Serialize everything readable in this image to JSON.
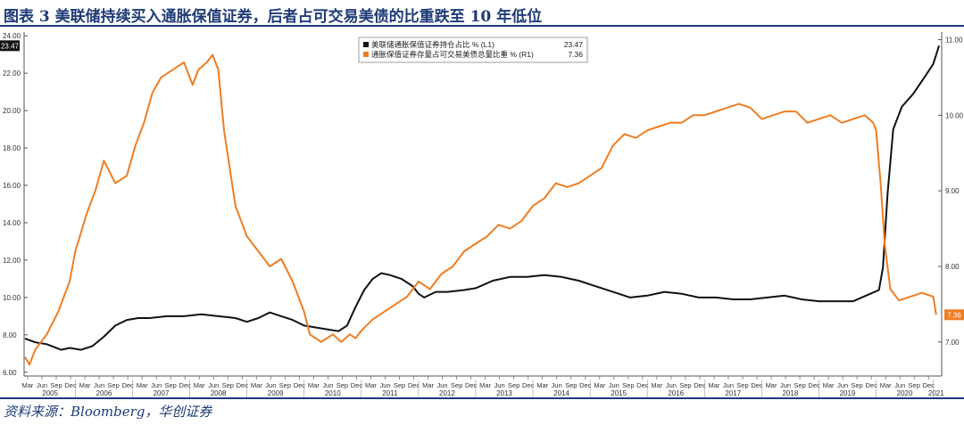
{
  "figure": {
    "title": "图表 3  美联储持续买入通胀保值证券，后者占可交易美债的比重跌至 10 年低位",
    "source": "资料来源：Bloomberg，华创证券"
  },
  "chart_data": {
    "type": "line",
    "x_range": [
      2005.12,
      2021.1
    ],
    "y_left": {
      "min": 5.8,
      "max": 24.2,
      "ticks": [
        "6.00",
        "8.00",
        "10.00",
        "12.00",
        "14.00",
        "16.00",
        "18.00",
        "20.00",
        "22.00",
        "24.00"
      ],
      "tick_values": [
        6,
        8,
        10,
        12,
        14,
        16,
        18,
        20,
        22,
        24
      ]
    },
    "y_right": {
      "min": 6.55,
      "max": 11.1,
      "ticks": [
        "7.00",
        "8.00",
        "9.00",
        "10.00",
        "11.00"
      ],
      "tick_values": [
        7,
        8,
        9,
        10,
        11
      ]
    },
    "x_month_labels": [
      "Mar",
      "Jun",
      "Sep",
      "Dec"
    ],
    "x_years": [
      "2005",
      "2006",
      "2007",
      "2008",
      "2009",
      "2010",
      "2011",
      "2012",
      "2013",
      "2014",
      "2015",
      "2016",
      "2017",
      "2018",
      "2019",
      "2020",
      "2021"
    ],
    "grid": false,
    "legend_position": "top",
    "series": [
      {
        "name": "美联储通胀保值证券持仓占比 % (L1)",
        "axis": "left",
        "color": "#111111",
        "last_value": "23.47",
        "points": [
          [
            2005.12,
            7.8
          ],
          [
            2005.3,
            7.6
          ],
          [
            2005.5,
            7.5
          ],
          [
            2005.75,
            7.2
          ],
          [
            2005.9,
            7.3
          ],
          [
            2006.1,
            7.2
          ],
          [
            2006.3,
            7.4
          ],
          [
            2006.5,
            7.9
          ],
          [
            2006.7,
            8.5
          ],
          [
            2006.9,
            8.8
          ],
          [
            2007.1,
            8.9
          ],
          [
            2007.3,
            8.9
          ],
          [
            2007.6,
            9.0
          ],
          [
            2007.9,
            9.0
          ],
          [
            2008.2,
            9.1
          ],
          [
            2008.5,
            9.0
          ],
          [
            2008.8,
            8.9
          ],
          [
            2009.0,
            8.7
          ],
          [
            2009.2,
            8.9
          ],
          [
            2009.4,
            9.2
          ],
          [
            2009.6,
            9.0
          ],
          [
            2009.8,
            8.8
          ],
          [
            2010.0,
            8.5
          ],
          [
            2010.2,
            8.4
          ],
          [
            2010.4,
            8.3
          ],
          [
            2010.6,
            8.2
          ],
          [
            2010.75,
            8.5
          ],
          [
            2010.9,
            9.5
          ],
          [
            2011.05,
            10.4
          ],
          [
            2011.2,
            11.0
          ],
          [
            2011.35,
            11.3
          ],
          [
            2011.5,
            11.2
          ],
          [
            2011.7,
            11.0
          ],
          [
            2011.9,
            10.6
          ],
          [
            2012.0,
            10.2
          ],
          [
            2012.1,
            10.0
          ],
          [
            2012.3,
            10.3
          ],
          [
            2012.5,
            10.3
          ],
          [
            2012.8,
            10.4
          ],
          [
            2013.0,
            10.5
          ],
          [
            2013.3,
            10.9
          ],
          [
            2013.6,
            11.1
          ],
          [
            2013.9,
            11.1
          ],
          [
            2014.2,
            11.2
          ],
          [
            2014.5,
            11.1
          ],
          [
            2014.8,
            10.9
          ],
          [
            2015.1,
            10.6
          ],
          [
            2015.4,
            10.3
          ],
          [
            2015.7,
            10.0
          ],
          [
            2016.0,
            10.1
          ],
          [
            2016.3,
            10.3
          ],
          [
            2016.6,
            10.2
          ],
          [
            2016.9,
            10.0
          ],
          [
            2017.2,
            10.0
          ],
          [
            2017.5,
            9.9
          ],
          [
            2017.8,
            9.9
          ],
          [
            2018.1,
            10.0
          ],
          [
            2018.4,
            10.1
          ],
          [
            2018.7,
            9.9
          ],
          [
            2019.0,
            9.8
          ],
          [
            2019.3,
            9.8
          ],
          [
            2019.6,
            9.8
          ],
          [
            2019.9,
            10.2
          ],
          [
            2020.05,
            10.4
          ],
          [
            2020.12,
            11.6
          ],
          [
            2020.2,
            15.5
          ],
          [
            2020.3,
            19.0
          ],
          [
            2020.45,
            20.2
          ],
          [
            2020.65,
            20.9
          ],
          [
            2020.85,
            21.8
          ],
          [
            2021.0,
            22.5
          ],
          [
            2021.1,
            23.47
          ]
        ]
      },
      {
        "name": "通胀保值证券存量占可交易美债总量比重 % (R1)",
        "axis": "right",
        "color": "#ef7d22",
        "last_value": "7.36",
        "points": [
          [
            2005.12,
            6.8
          ],
          [
            2005.2,
            6.7
          ],
          [
            2005.3,
            6.9
          ],
          [
            2005.5,
            7.1
          ],
          [
            2005.7,
            7.4
          ],
          [
            2005.9,
            7.8
          ],
          [
            2006.0,
            8.2
          ],
          [
            2006.2,
            8.7
          ],
          [
            2006.35,
            9.0
          ],
          [
            2006.5,
            9.4
          ],
          [
            2006.7,
            9.1
          ],
          [
            2006.9,
            9.2
          ],
          [
            2007.05,
            9.6
          ],
          [
            2007.2,
            9.9
          ],
          [
            2007.35,
            10.3
          ],
          [
            2007.5,
            10.5
          ],
          [
            2007.7,
            10.6
          ],
          [
            2007.9,
            10.7
          ],
          [
            2008.05,
            10.4
          ],
          [
            2008.15,
            10.6
          ],
          [
            2008.3,
            10.7
          ],
          [
            2008.4,
            10.8
          ],
          [
            2008.5,
            10.6
          ],
          [
            2008.6,
            9.8
          ],
          [
            2008.8,
            8.8
          ],
          [
            2009.0,
            8.4
          ],
          [
            2009.2,
            8.2
          ],
          [
            2009.4,
            8.0
          ],
          [
            2009.6,
            8.1
          ],
          [
            2009.8,
            7.8
          ],
          [
            2010.0,
            7.4
          ],
          [
            2010.1,
            7.1
          ],
          [
            2010.3,
            7.0
          ],
          [
            2010.5,
            7.1
          ],
          [
            2010.65,
            7.0
          ],
          [
            2010.8,
            7.1
          ],
          [
            2010.9,
            7.05
          ],
          [
            2011.0,
            7.15
          ],
          [
            2011.2,
            7.3
          ],
          [
            2011.4,
            7.4
          ],
          [
            2011.6,
            7.5
          ],
          [
            2011.8,
            7.6
          ],
          [
            2012.0,
            7.8
          ],
          [
            2012.2,
            7.7
          ],
          [
            2012.4,
            7.9
          ],
          [
            2012.6,
            8.0
          ],
          [
            2012.8,
            8.2
          ],
          [
            2013.0,
            8.3
          ],
          [
            2013.2,
            8.4
          ],
          [
            2013.4,
            8.55
          ],
          [
            2013.6,
            8.5
          ],
          [
            2013.8,
            8.6
          ],
          [
            2014.0,
            8.8
          ],
          [
            2014.2,
            8.9
          ],
          [
            2014.4,
            9.1
          ],
          [
            2014.6,
            9.05
          ],
          [
            2014.8,
            9.1
          ],
          [
            2015.0,
            9.2
          ],
          [
            2015.2,
            9.3
          ],
          [
            2015.4,
            9.6
          ],
          [
            2015.6,
            9.75
          ],
          [
            2015.8,
            9.7
          ],
          [
            2016.0,
            9.8
          ],
          [
            2016.2,
            9.85
          ],
          [
            2016.4,
            9.9
          ],
          [
            2016.6,
            9.9
          ],
          [
            2016.8,
            10.0
          ],
          [
            2017.0,
            10.0
          ],
          [
            2017.2,
            10.05
          ],
          [
            2017.4,
            10.1
          ],
          [
            2017.6,
            10.15
          ],
          [
            2017.8,
            10.1
          ],
          [
            2018.0,
            9.95
          ],
          [
            2018.2,
            10.0
          ],
          [
            2018.4,
            10.05
          ],
          [
            2018.6,
            10.05
          ],
          [
            2018.8,
            9.9
          ],
          [
            2019.0,
            9.95
          ],
          [
            2019.2,
            10.0
          ],
          [
            2019.4,
            9.9
          ],
          [
            2019.6,
            9.95
          ],
          [
            2019.8,
            10.0
          ],
          [
            2019.95,
            9.9
          ],
          [
            2020.0,
            9.8
          ],
          [
            2020.08,
            9.1
          ],
          [
            2020.15,
            8.3
          ],
          [
            2020.25,
            7.7
          ],
          [
            2020.4,
            7.55
          ],
          [
            2020.6,
            7.6
          ],
          [
            2020.8,
            7.65
          ],
          [
            2021.0,
            7.6
          ],
          [
            2021.05,
            7.36
          ]
        ]
      }
    ]
  }
}
